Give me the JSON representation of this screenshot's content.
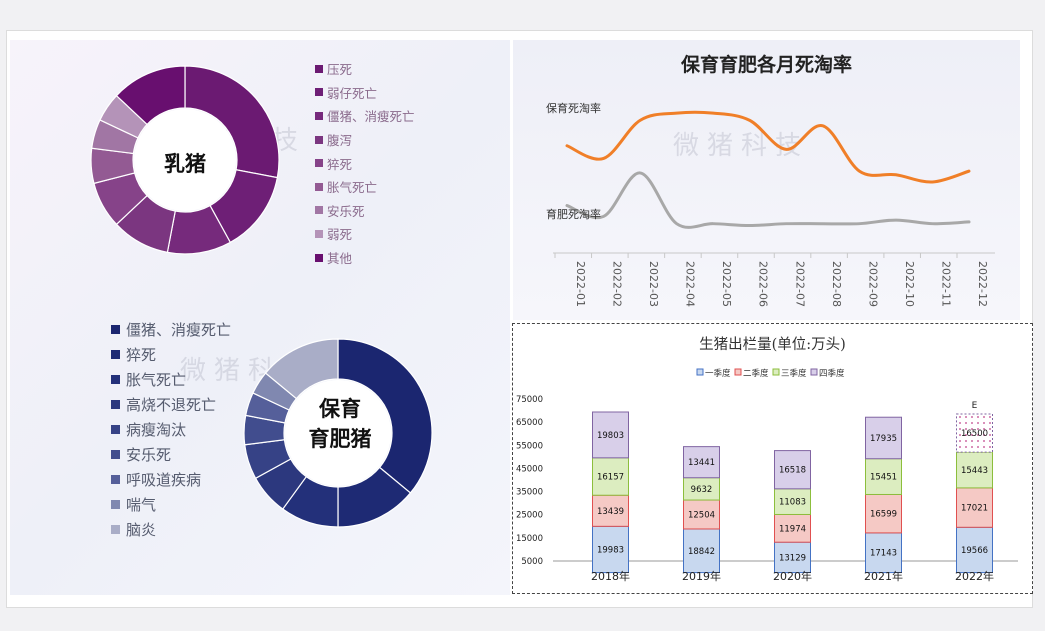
{
  "colors": {
    "piglet_slices": [
      "#6b1a72",
      "#6e1f76",
      "#762a7c",
      "#7b3680",
      "#864389",
      "#935a93",
      "#a176a4",
      "#b493b8",
      "#680f6f"
    ],
    "nursery_slices": [
      "#1b2670",
      "#1e2a74",
      "#23307a",
      "#2c387e",
      "#364286",
      "#414d8e",
      "#555f9a",
      "#8088b0",
      "#a9adc7"
    ],
    "line_colors": [
      "#f07f28",
      "#a8a8a8"
    ],
    "quarter_fills": [
      "#c8d8ef",
      "#f5c9c5",
      "#dcedc0",
      "#d8cfe9"
    ],
    "quarter_strokes": [
      "#4472c4",
      "#e05050",
      "#8cbe3c",
      "#8064a2"
    ]
  },
  "watermark": "微猪科技",
  "donut_piglet": {
    "center_label": "乳猪",
    "legend": [
      "压死",
      "弱仔死亡",
      "僵猪、消瘦死亡",
      "腹泻",
      "猝死",
      "胀气死亡",
      "安乐死",
      "弱死",
      "其他"
    ]
  },
  "donut_nursery": {
    "center_label_line1": "保育",
    "center_label_line2": "育肥猪",
    "legend": [
      "僵猪、消瘦死亡",
      "猝死",
      "胀气死亡",
      "高烧不退死亡",
      "病瘦淘汰",
      "安乐死",
      "呼吸道疾病",
      "喘气",
      "脑炎"
    ]
  },
  "chart_data": [
    {
      "type": "pie",
      "categories": [
        "压死",
        "弱仔死亡",
        "僵猪、消瘦死亡",
        "腹泻",
        "猝死",
        "胀气死亡",
        "安乐死",
        "弱死",
        "其他"
      ],
      "values": [
        28,
        14,
        11,
        10,
        8,
        6,
        5,
        5,
        13
      ],
      "center_label": "乳猪"
    },
    {
      "type": "pie",
      "categories": [
        "僵猪、消瘦死亡",
        "猝死",
        "胀气死亡",
        "高烧不退死亡",
        "病瘦淘汰",
        "安乐死",
        "呼吸道疾病",
        "喘气",
        "脑炎"
      ],
      "values": [
        36,
        14,
        10,
        7,
        6,
        5,
        4,
        4,
        14
      ],
      "center_label": "保育育肥猪"
    },
    {
      "type": "line",
      "title": "保育育肥各月死淘率",
      "x": [
        "2022-01",
        "2022-02",
        "2022-03",
        "2022-04",
        "2022-05",
        "2022-06",
        "2022-07",
        "2022-08",
        "2022-09",
        "2022-10",
        "2022-11",
        "2022-12"
      ],
      "series": [
        {
          "name": "保育死淘率",
          "values": [
            5.2,
            4.5,
            6.6,
            7.0,
            7.0,
            6.6,
            5.0,
            6.3,
            3.8,
            3.6,
            3.2,
            3.8
          ]
        },
        {
          "name": "育肥死淘率",
          "values": [
            1.9,
            1.3,
            3.7,
            0.9,
            0.9,
            0.8,
            0.9,
            0.9,
            0.9,
            1.1,
            0.9,
            1.0
          ]
        }
      ],
      "ylim": [
        0,
        8
      ]
    },
    {
      "type": "bar",
      "stacked": true,
      "title": "生猪出栏量(单位:万头)",
      "categories": [
        "2018年",
        "2019年",
        "2020年",
        "2021年",
        "2022年"
      ],
      "series": [
        {
          "name": "一季度",
          "values": [
            19983,
            18842,
            13129,
            17143,
            19566
          ]
        },
        {
          "name": "二季度",
          "values": [
            13439,
            12504,
            11974,
            16599,
            17021
          ]
        },
        {
          "name": "三季度",
          "values": [
            16157,
            9632,
            11083,
            15451,
            15443
          ]
        },
        {
          "name": "四季度",
          "values": [
            19803,
            13441,
            16518,
            17935,
            16500
          ]
        }
      ],
      "y_ticks": [
        "75000",
        "65000",
        "55000",
        "45000",
        "35000",
        "25000",
        "15000",
        "5000"
      ],
      "ylim": [
        5000,
        75000
      ],
      "legend": "top",
      "annotation": "E"
    }
  ]
}
